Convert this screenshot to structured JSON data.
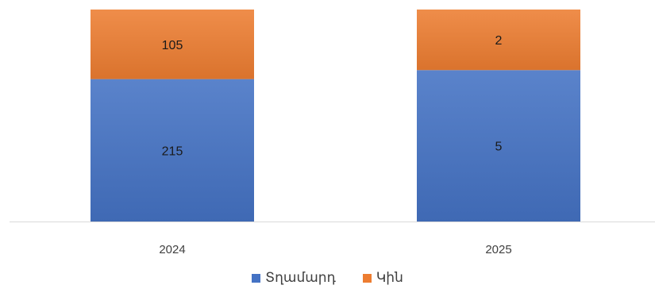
{
  "chart_data": {
    "type": "bar",
    "stacked": true,
    "categories": [
      "2024",
      "2025"
    ],
    "series": [
      {
        "name": "Տղամարդ",
        "values": [
          215,
          5
        ],
        "color": "#4472C4"
      },
      {
        "name": "Կին",
        "values": [
          105,
          2
        ],
        "color": "#ED7D31"
      }
    ],
    "normalized_to_100_percent": true,
    "data_labels": true,
    "grid": false,
    "legend": "bottom"
  }
}
